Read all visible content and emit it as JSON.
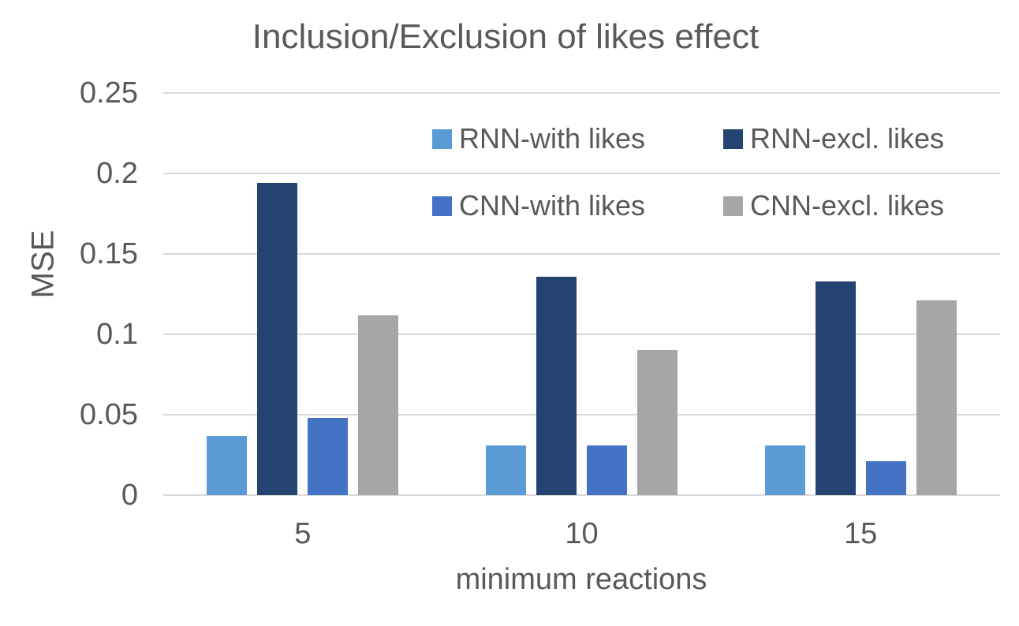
{
  "chart_data": {
    "type": "bar",
    "title": "Inclusion/Exclusion of likes effect",
    "xlabel": "minimum reactions",
    "ylabel": "MSE",
    "categories": [
      "5",
      "10",
      "15"
    ],
    "series": [
      {
        "name": "RNN-with likes",
        "color": "#5B9BD5",
        "values": [
          0.037,
          0.031,
          0.031
        ]
      },
      {
        "name": "RNN-excl. likes",
        "color": "#254371",
        "values": [
          0.194,
          0.136,
          0.133
        ]
      },
      {
        "name": "CNN-with likes",
        "color": "#4472C4",
        "values": [
          0.048,
          0.031,
          0.021
        ]
      },
      {
        "name": "CNN-excl. likes",
        "color": "#A6A6A6",
        "values": [
          0.112,
          0.09,
          0.121
        ]
      }
    ],
    "ylim": [
      0,
      0.25
    ],
    "yticks": [
      {
        "label": "0.25",
        "value": 0.25
      },
      {
        "label": "0.2",
        "value": 0.2
      },
      {
        "label": "0.15",
        "value": 0.15
      },
      {
        "label": "0.1",
        "value": 0.1
      },
      {
        "label": "0.05",
        "value": 0.05
      },
      {
        "label": "0",
        "value": 0
      }
    ],
    "grid": true,
    "legend_position": "inside-top-right",
    "legend_rows": [
      [
        "RNN-with likes",
        "RNN-excl. likes"
      ],
      [
        "CNN-with likes",
        "CNN-excl. likes"
      ]
    ],
    "colors": {
      "text": "#595959",
      "gridline": "#D9D9D9",
      "background": "#FFFFFF"
    }
  }
}
